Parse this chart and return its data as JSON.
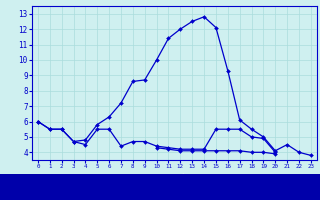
{
  "x_hours": [
    0,
    1,
    2,
    3,
    4,
    5,
    6,
    7,
    8,
    9,
    10,
    11,
    12,
    13,
    14,
    15,
    16,
    17,
    18,
    19,
    20,
    21,
    22,
    23
  ],
  "line1": [
    6.0,
    5.5,
    5.5,
    4.7,
    4.8,
    5.8,
    6.3,
    7.2,
    8.6,
    8.7,
    10.0,
    11.4,
    12.0,
    12.5,
    12.8,
    12.1,
    9.3,
    6.1,
    5.5,
    5.0,
    4.1,
    4.5,
    4.0,
    3.8
  ],
  "line2": [
    6.0,
    5.5,
    5.5,
    4.7,
    4.5,
    5.5,
    5.5,
    4.4,
    4.7,
    4.7,
    4.4,
    4.3,
    4.2,
    4.2,
    4.2,
    5.5,
    5.5,
    5.5,
    5.0,
    4.9,
    4.0,
    null,
    null,
    null
  ],
  "line3": [
    null,
    null,
    null,
    null,
    null,
    null,
    null,
    null,
    null,
    null,
    4.3,
    4.2,
    4.1,
    4.1,
    4.1,
    4.1,
    4.1,
    4.1,
    4.0,
    4.0,
    3.9,
    null,
    null,
    null
  ],
  "bg_color": "#cff0f0",
  "line_color": "#0000cc",
  "grid_color": "#aadddd",
  "text_color": "#0000cc",
  "axis_bg": "#cff0f0",
  "ylim": [
    3.5,
    13.5
  ],
  "yticks": [
    4,
    5,
    6,
    7,
    8,
    9,
    10,
    11,
    12,
    13
  ],
  "xlim": [
    -0.5,
    23.5
  ]
}
